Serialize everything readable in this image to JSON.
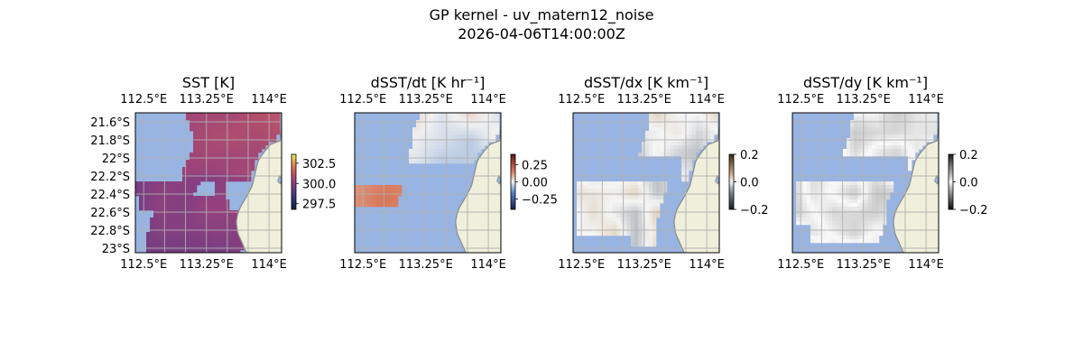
{
  "figure": {
    "title_line1": "GP kernel - uv_matern12_noise",
    "title_line2": "2026-04-06T14:00:00Z"
  },
  "chart_data": [
    {
      "type": "heatmap",
      "title": "SST [K]",
      "xlim": [
        112.4,
        114.15
      ],
      "ylim": [
        -23.05,
        -21.5
      ],
      "x_ticks": [
        "112.5°E",
        "113.25°E",
        "114°E"
      ],
      "x_tick_values": [
        112.5,
        113.25,
        114.0
      ],
      "y_ticks": [
        "21.6°S",
        "21.8°S",
        "22°S",
        "22.2°S",
        "22.4°S",
        "22.6°S",
        "22.8°S",
        "23°S"
      ],
      "y_tick_values": [
        -21.6,
        -21.8,
        -22.0,
        -22.2,
        -22.4,
        -22.6,
        -22.8,
        -23.0
      ],
      "colorbar": {
        "ticks": [
          "302.5",
          "300.0",
          "297.5"
        ],
        "tick_values": [
          302.5,
          300.0,
          297.5
        ],
        "range": [
          296.8,
          303.6
        ],
        "colormap": "thermal"
      }
    },
    {
      "type": "heatmap",
      "title": "dSST/dt [K hr⁻¹]",
      "xlim": [
        112.4,
        114.15
      ],
      "ylim": [
        -23.05,
        -21.5
      ],
      "x_ticks": [
        "112.5°E",
        "113.25°E",
        "114°E"
      ],
      "x_tick_values": [
        112.5,
        113.25,
        114.0
      ],
      "colorbar": {
        "ticks": [
          "0.25",
          "0.00",
          "−0.25"
        ],
        "tick_values": [
          0.25,
          0.0,
          -0.25
        ],
        "range": [
          -0.4,
          0.4
        ],
        "colormap": "balance"
      }
    },
    {
      "type": "heatmap",
      "title": "dSST/dx [K km⁻¹]",
      "xlim": [
        112.4,
        114.15
      ],
      "ylim": [
        -23.05,
        -21.5
      ],
      "x_ticks": [
        "112.5°E",
        "113.25°E",
        "114°E"
      ],
      "x_tick_values": [
        112.5,
        113.25,
        114.0
      ],
      "colorbar": {
        "ticks": [
          "0.2",
          "0.0",
          "−0.2"
        ],
        "tick_values": [
          0.2,
          0.0,
          -0.2
        ],
        "range": [
          -0.2,
          0.2
        ],
        "colormap": "diverging-brown"
      }
    },
    {
      "type": "heatmap",
      "title": "dSST/dy [K km⁻¹]",
      "xlim": [
        112.4,
        114.15
      ],
      "ylim": [
        -23.05,
        -21.5
      ],
      "x_ticks": [
        "112.5°E",
        "113.25°E",
        "114°E"
      ],
      "x_tick_values": [
        112.5,
        113.25,
        114.0
      ],
      "colorbar": {
        "ticks": [
          "0.2",
          "0.0",
          "−0.2"
        ],
        "tick_values": [
          0.2,
          0.0,
          -0.2
        ],
        "range": [
          -0.2,
          0.2
        ],
        "colormap": "diverging-gray"
      }
    }
  ],
  "colors": {
    "ocean_masked": "#98b4e2",
    "land": "#efefdb",
    "coast": "#8a8a8a",
    "grid": "#b0b0b0"
  }
}
